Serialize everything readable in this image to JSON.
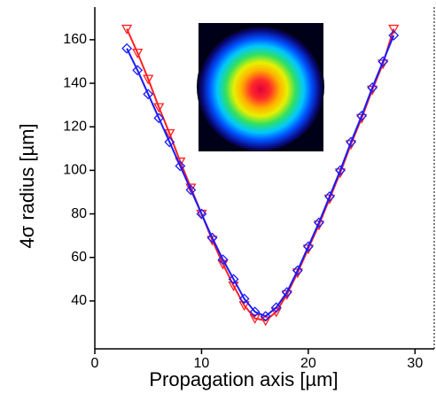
{
  "chart_data": {
    "type": "line",
    "xlabel": "Propagation axis  [µm]",
    "ylabel": "4σ radius  [µm]",
    "x": [
      3,
      4,
      5,
      6,
      7,
      8,
      9,
      10,
      11,
      12,
      13,
      14,
      15,
      16,
      17,
      18,
      19,
      20,
      21,
      22,
      23,
      24,
      25,
      26,
      27,
      28
    ],
    "series": [
      {
        "color": "#ff2020",
        "marker": "triangle-down",
        "values": [
          165,
          154,
          142,
          129,
          117,
          104,
          92,
          80,
          68,
          57,
          47,
          38,
          32,
          31,
          35,
          43,
          53,
          64,
          75,
          87,
          99,
          112,
          124,
          137,
          149,
          165
        ]
      },
      {
        "color": "#1a1aff",
        "marker": "diamond",
        "values": [
          156,
          146,
          135,
          124,
          113,
          102,
          91,
          80,
          69,
          59,
          50,
          41,
          35,
          33,
          37,
          44,
          54,
          65,
          76,
          88,
          100,
          113,
          125,
          138,
          150,
          162
        ]
      }
    ],
    "xlim": [
      0,
      31.8
    ],
    "xticks": [
      0,
      10,
      20,
      30
    ],
    "ylim": [
      18,
      175
    ],
    "yticks": [
      40,
      60,
      80,
      100,
      120,
      140,
      160
    ]
  }
}
